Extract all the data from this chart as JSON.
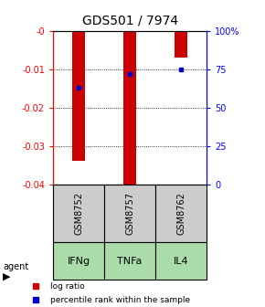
{
  "title": "GDS501 / 7974",
  "samples": [
    "GSM8752",
    "GSM8757",
    "GSM8762"
  ],
  "agents": [
    "IFNg",
    "TNFa",
    "IL4"
  ],
  "log_ratios": [
    -0.034,
    -0.04,
    -0.007
  ],
  "percentile_ranks": [
    0.63,
    0.72,
    0.75
  ],
  "ylim_left": [
    -0.04,
    0.0
  ],
  "ylim_right": [
    0.0,
    1.0
  ],
  "yticks_left": [
    0.0,
    -0.01,
    -0.02,
    -0.03,
    -0.04
  ],
  "yticks_right": [
    0.0,
    0.25,
    0.5,
    0.75,
    1.0
  ],
  "ytick_labels_right": [
    "0",
    "25",
    "50",
    "75",
    "100%"
  ],
  "bar_color": "#cc0000",
  "dot_color": "#0000cc",
  "sample_box_color": "#cccccc",
  "agent_box_color": "#aaddaa",
  "title_fontsize": 10,
  "tick_fontsize": 7,
  "agent_fontsize": 8,
  "sample_fontsize": 7,
  "bar_width": 0.25,
  "legend_fontsize": 6.5
}
